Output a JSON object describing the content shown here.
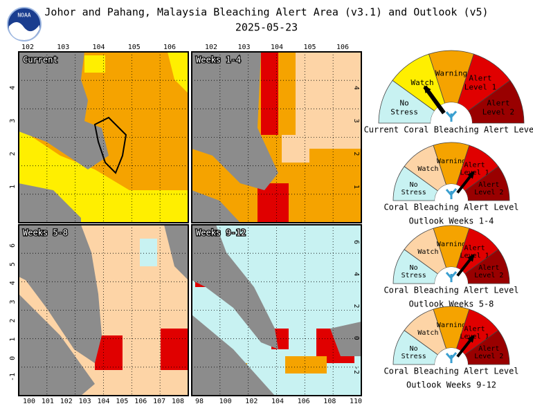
{
  "title": [
    "Johor and Pahang, Malaysia Bleaching Alert Area (v3.1) and Outlook (v5)",
    "2025-05-23"
  ],
  "logo": "NOAA",
  "panels": [
    {
      "label": "Current",
      "top_ticks": [
        102,
        103,
        104,
        105,
        106
      ],
      "left_ticks": [
        4,
        3,
        2,
        1
      ]
    },
    {
      "label": "Weeks 1-4",
      "top_ticks": [
        102,
        103,
        104,
        105,
        106
      ],
      "right_ticks": [
        4,
        3,
        2,
        1
      ]
    },
    {
      "label": "Weeks 5-8",
      "bottom_ticks": [
        100,
        101,
        102,
        103,
        104,
        105,
        106,
        107,
        108
      ],
      "left_ticks": [
        6,
        5,
        4,
        3,
        2,
        1,
        0,
        -1
      ]
    },
    {
      "label": "Weeks 9-12",
      "bottom_ticks": [
        98,
        100,
        102,
        104,
        106,
        108,
        110
      ],
      "right_ticks": [
        6,
        4,
        2,
        0,
        -2
      ]
    }
  ],
  "gauges": [
    {
      "levels": [
        [
          "No",
          "Stress"
        ],
        [
          "Watch"
        ],
        [
          "Warning"
        ],
        [
          "Alert",
          "Level 1"
        ],
        [
          "Alert",
          "Level 2"
        ]
      ],
      "colors": [
        "#c8f2f2",
        "#ffef00",
        "#f5a300",
        "#e00000",
        "#990000"
      ],
      "caption": [
        "Current Coral Bleaching Alert Level"
      ]
    },
    {
      "levels": [
        [
          "No",
          "Stress"
        ],
        [
          "Watch"
        ],
        [
          "Warning"
        ],
        [
          "Alert",
          "Level 1"
        ],
        [
          "Alert",
          "Level 2"
        ]
      ],
      "colors": [
        "#c8f2f2",
        "#fdd4a6",
        "#f5a300",
        "#e00000",
        "#990000"
      ],
      "caption": [
        "Coral Bleaching Alert Level",
        "Outlook Weeks 1-4"
      ]
    },
    {
      "levels": [
        [
          "No",
          "Stress"
        ],
        [
          "Watch"
        ],
        [
          "Warning"
        ],
        [
          "Alert",
          "Level 1"
        ],
        [
          "Alert",
          "Level 2"
        ]
      ],
      "colors": [
        "#c8f2f2",
        "#fdd4a6",
        "#f5a300",
        "#e00000",
        "#990000"
      ],
      "caption": [
        "Coral Bleaching Alert Level",
        "Outlook Weeks 5-8"
      ]
    },
    {
      "levels": [
        [
          "No",
          "Stress"
        ],
        [
          "Watch"
        ],
        [
          "Warning"
        ],
        [
          "Alert",
          "Level 1"
        ],
        [
          "Alert",
          "Level 2"
        ]
      ],
      "colors": [
        "#c8f2f2",
        "#fdd4a6",
        "#f5a300",
        "#e00000",
        "#990000"
      ],
      "caption": [
        "Coral Bleaching Alert Level",
        "Outlook Weeks 9-12"
      ]
    }
  ]
}
